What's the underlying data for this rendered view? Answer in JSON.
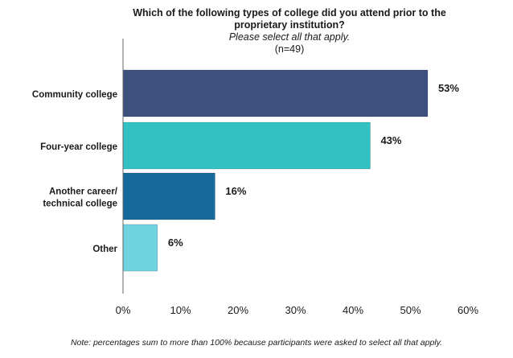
{
  "chart_data": {
    "type": "bar",
    "orientation": "horizontal",
    "title": "Which of the following types of college did you attend prior to the proprietary institution?",
    "subtitle": "Please select all that apply.",
    "sample_size": "(n=49)",
    "categories": [
      "Community college",
      "Four-year college",
      "Another career/ technical college",
      "Other"
    ],
    "category_lines": [
      [
        "Community college"
      ],
      [
        "Four-year college"
      ],
      [
        "Another career/",
        "technical college"
      ],
      [
        "Other"
      ]
    ],
    "values": [
      53,
      43,
      16,
      6
    ],
    "value_labels": [
      "53%",
      "43%",
      "16%",
      "6%"
    ],
    "bar_colors": [
      "#3c517e",
      "#33c2c4",
      "#17699c",
      "#72d3e0"
    ],
    "xlim": [
      0,
      60
    ],
    "xticks": [
      0,
      10,
      20,
      30,
      40,
      50,
      60
    ],
    "xtick_labels": [
      "0%",
      "10%",
      "20%",
      "30%",
      "40%",
      "50%",
      "60%"
    ],
    "xlabel": "",
    "ylabel": "",
    "grid": false,
    "note": "Note: percentages sum to more than 100% because participants were asked to select all that apply."
  }
}
